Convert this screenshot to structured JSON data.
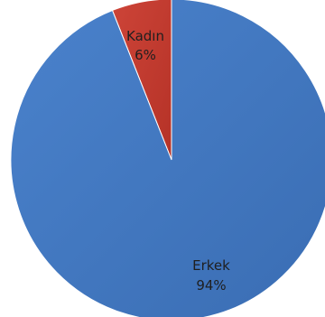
{
  "chart_data": {
    "type": "pie",
    "slices": [
      {
        "label": "Kadın",
        "value": 6,
        "value_label": "6%",
        "color": "#c0392b"
      },
      {
        "label": "Erkek",
        "value": 94,
        "value_label": "94%",
        "color": "#3f76c0"
      }
    ],
    "start_angle_deg": 0,
    "direction": "counterclockwise",
    "legend": "none"
  }
}
